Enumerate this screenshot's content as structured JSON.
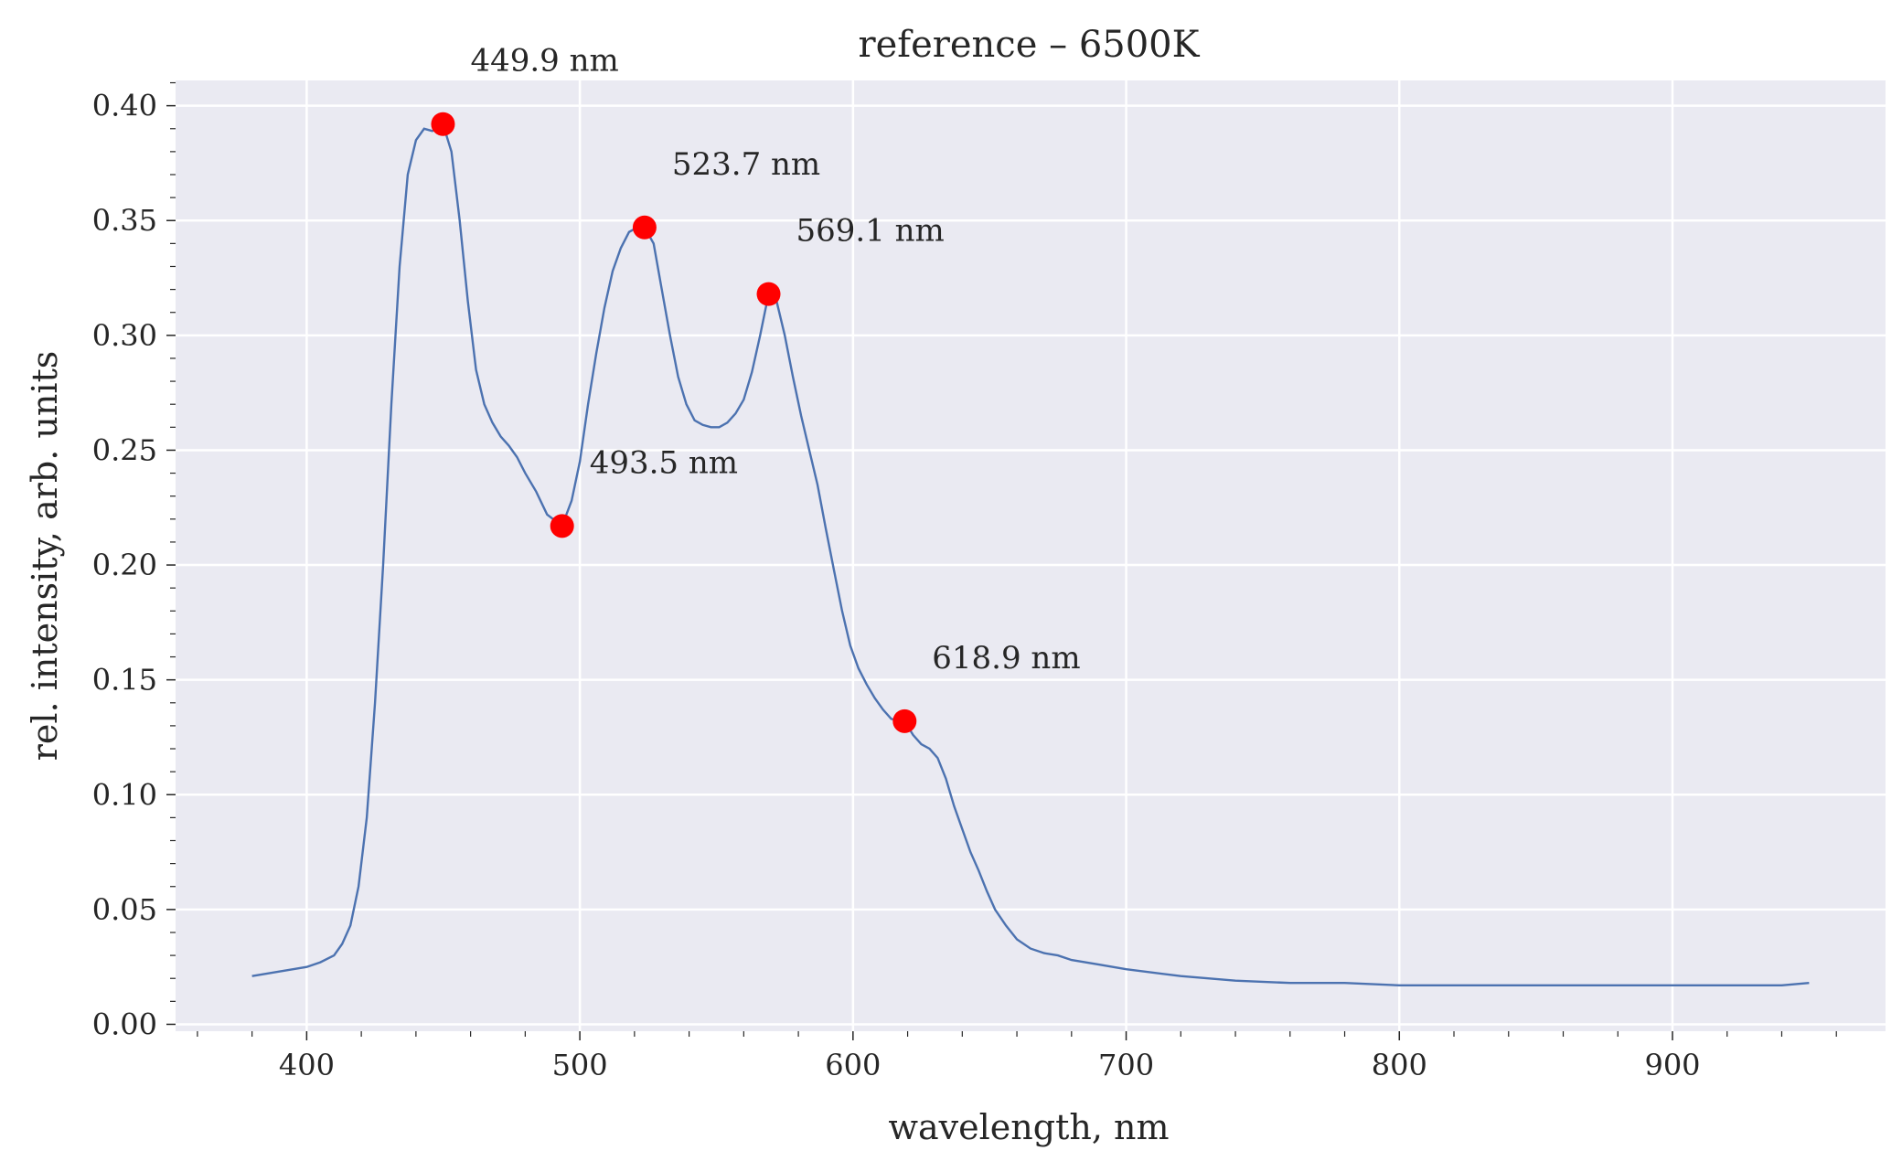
{
  "chart_data": {
    "type": "line",
    "title": "reference – 6500K",
    "xlabel": "wavelength, nm",
    "ylabel": "rel. intensity, arb. units",
    "xlim": [
      352,
      978
    ],
    "ylim": [
      -0.003,
      0.411
    ],
    "xticks": [
      400,
      500,
      600,
      700,
      800,
      900
    ],
    "yticks": [
      0.0,
      0.05,
      0.1,
      0.15,
      0.2,
      0.25,
      0.3,
      0.35,
      0.4
    ],
    "xtick_labels": [
      "400",
      "500",
      "600",
      "700",
      "800",
      "900"
    ],
    "ytick_labels": [
      "0.00",
      "0.05",
      "0.10",
      "0.15",
      "0.20",
      "0.25",
      "0.30",
      "0.35",
      "0.40"
    ],
    "grid": true,
    "background_color": "#eaeaf2",
    "line_color": "#4c72b0",
    "marker_color": "#ff0000",
    "series": [
      {
        "x": [
          380,
          385,
          390,
          395,
          400,
          405,
          410,
          413,
          416,
          419,
          422,
          425,
          428,
          431,
          434,
          437,
          440,
          443,
          446,
          449.9,
          453,
          456,
          459,
          462,
          465,
          468,
          471,
          474,
          477,
          480,
          484,
          488,
          493.5,
          497,
          500,
          503,
          506,
          509,
          512,
          515,
          518,
          521,
          523.7,
          527,
          530,
          533,
          536,
          539,
          542,
          545,
          548,
          551,
          554,
          557,
          560,
          563,
          566,
          569.1,
          572,
          575,
          578,
          581,
          584,
          587,
          590,
          593,
          596,
          599,
          602,
          605,
          608,
          611,
          614,
          618.9,
          622,
          625,
          628,
          631,
          634,
          637,
          640,
          643,
          646,
          649,
          652,
          656,
          660,
          665,
          670,
          675,
          680,
          690,
          700,
          720,
          740,
          760,
          780,
          800,
          820,
          840,
          860,
          880,
          900,
          920,
          940,
          950
        ],
        "y": [
          0.021,
          0.022,
          0.023,
          0.024,
          0.025,
          0.027,
          0.03,
          0.035,
          0.043,
          0.06,
          0.09,
          0.14,
          0.2,
          0.27,
          0.33,
          0.37,
          0.385,
          0.39,
          0.389,
          0.392,
          0.38,
          0.35,
          0.315,
          0.285,
          0.27,
          0.262,
          0.256,
          0.252,
          0.247,
          0.24,
          0.232,
          0.222,
          0.217,
          0.228,
          0.245,
          0.27,
          0.292,
          0.312,
          0.328,
          0.338,
          0.345,
          0.347,
          0.347,
          0.34,
          0.32,
          0.3,
          0.282,
          0.27,
          0.263,
          0.261,
          0.26,
          0.26,
          0.262,
          0.266,
          0.272,
          0.284,
          0.3,
          0.318,
          0.315,
          0.3,
          0.282,
          0.265,
          0.25,
          0.235,
          0.216,
          0.198,
          0.18,
          0.165,
          0.155,
          0.148,
          0.142,
          0.137,
          0.133,
          0.132,
          0.126,
          0.122,
          0.12,
          0.116,
          0.107,
          0.095,
          0.085,
          0.075,
          0.067,
          0.058,
          0.05,
          0.043,
          0.037,
          0.033,
          0.031,
          0.03,
          0.028,
          0.026,
          0.024,
          0.021,
          0.019,
          0.018,
          0.018,
          0.017,
          0.017,
          0.017,
          0.017,
          0.017,
          0.017,
          0.017,
          0.017,
          0.018
        ]
      }
    ],
    "annotations": [
      {
        "x": 449.9,
        "y": 0.392,
        "label": "449.9 nm"
      },
      {
        "x": 493.5,
        "y": 0.217,
        "label": "493.5 nm"
      },
      {
        "x": 523.7,
        "y": 0.347,
        "label": "523.7 nm"
      },
      {
        "x": 569.1,
        "y": 0.318,
        "label": "569.1 nm"
      },
      {
        "x": 618.9,
        "y": 0.132,
        "label": "618.9 nm"
      }
    ]
  }
}
